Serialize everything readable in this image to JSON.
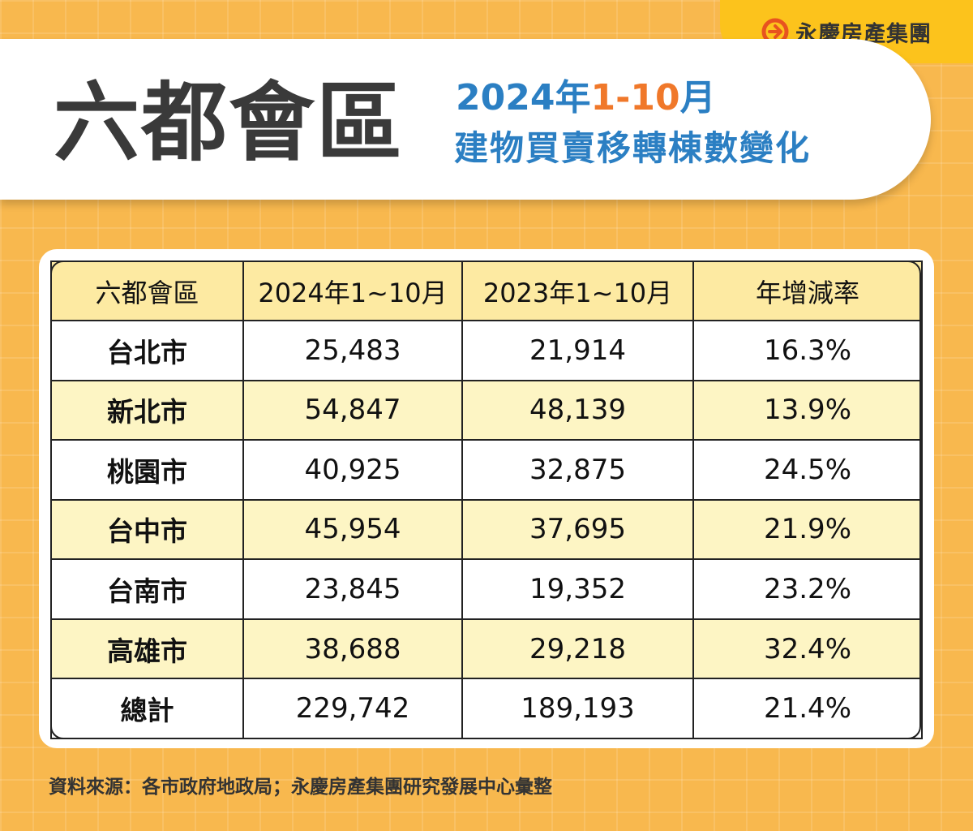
{
  "brand": {
    "name": "永慶房產集團",
    "logo_icon": "yungching-logo-icon",
    "logo_color": "#e8531f"
  },
  "header": {
    "main_title": "六都會區",
    "subtitle_year": "2024年",
    "subtitle_range": "1-10",
    "subtitle_month": "月",
    "subtitle_line2": "建物買賣移轉棟數變化"
  },
  "colors": {
    "background": "#f8b84e",
    "brand_tab": "#fcc31c",
    "title_blue": "#2b7fc3",
    "title_orange": "#f0782a",
    "header_row": "#fdeaa2",
    "alt_row": "#fdf5c4"
  },
  "chart_data": {
    "type": "table",
    "columns": [
      "六都會區",
      "2024年1~10月",
      "2023年1~10月",
      "年增減率"
    ],
    "rows": [
      [
        "台北市",
        "25,483",
        "21,914",
        "16.3%"
      ],
      [
        "新北市",
        "54,847",
        "48,139",
        "13.9%"
      ],
      [
        "桃園市",
        "40,925",
        "32,875",
        "24.5%"
      ],
      [
        "台中市",
        "45,954",
        "37,695",
        "21.9%"
      ],
      [
        "台南市",
        "23,845",
        "19,352",
        "23.2%"
      ],
      [
        "高雄市",
        "38,688",
        "29,218",
        "32.4%"
      ],
      [
        "總計",
        "229,742",
        "189,193",
        "21.4%"
      ]
    ]
  },
  "footer": {
    "source": "資料來源：各市政府地政局；永慶房產集團研究發展中心彙整"
  }
}
